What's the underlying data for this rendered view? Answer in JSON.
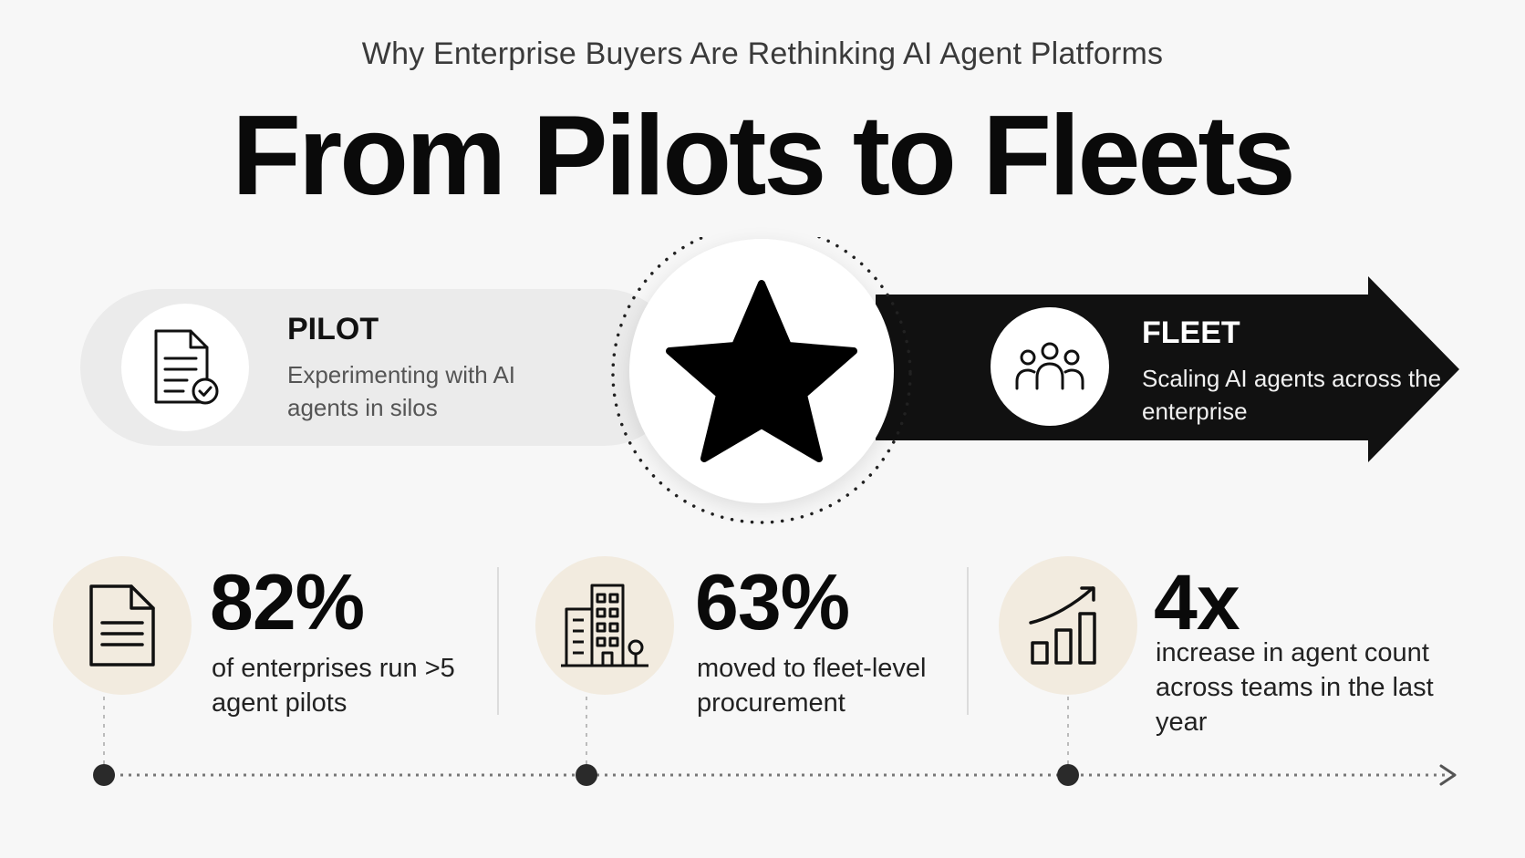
{
  "header": {
    "subtitle": "Why Enterprise Buyers Are Rethinking AI Agent Platforms",
    "title": "From Pilots to Fleets"
  },
  "pilot": {
    "title": "PILOT",
    "description": "Experimenting with AI agents in silos",
    "icon": "document-check-icon"
  },
  "center": {
    "icon": "star-icon"
  },
  "fleet": {
    "title": "FLEET",
    "description": "Scaling AI agents across the enterprise",
    "icon": "people-group-icon"
  },
  "stats": [
    {
      "value": "82%",
      "description": "of enterprises run >5 agent pilots",
      "icon": "document-icon"
    },
    {
      "value": "63%",
      "description": "moved to fleet-level procurement",
      "icon": "building-icon"
    },
    {
      "value": "4x",
      "description": "increase in agent count across teams in the last year",
      "icon": "growth-chart-icon"
    }
  ],
  "colors": {
    "background": "#f7f7f7",
    "pilot_band": "#ebebeb",
    "fleet_band": "#111111",
    "stat_circle": "#f2ebdf"
  }
}
